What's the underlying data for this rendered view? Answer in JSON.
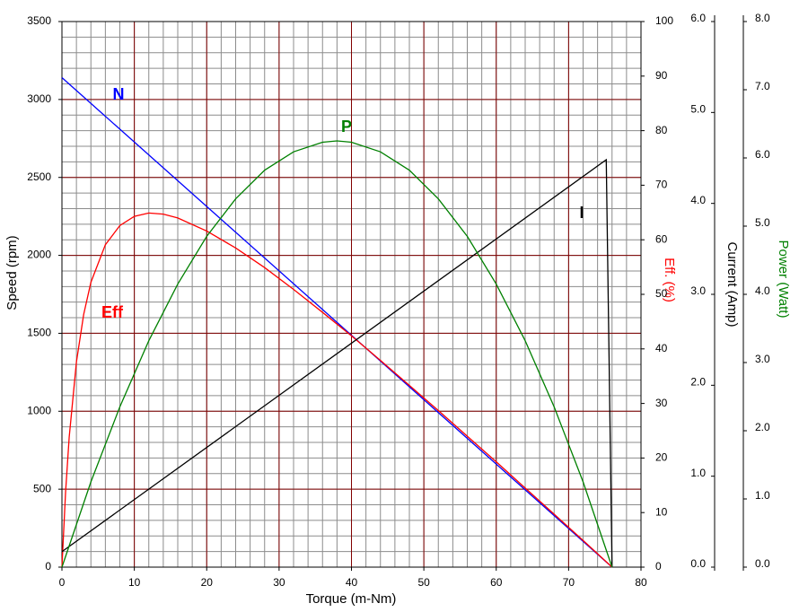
{
  "chart_data": {
    "type": "line",
    "xlabel": "Torque (m-Nm)",
    "ylabel": "Speed (rpm)",
    "y2label": "Eff. (%)",
    "y3label": "Current (Amp)",
    "y4label": "Power (Watt)",
    "xlim": [
      0,
      80
    ],
    "xticks": [
      0,
      10,
      20,
      30,
      40,
      50,
      60,
      70,
      80
    ],
    "ylim": [
      0,
      3500
    ],
    "yticks": [
      0,
      500,
      1000,
      1500,
      2000,
      2500,
      3000,
      3500
    ],
    "y2lim": [
      0,
      100
    ],
    "y2ticks": [
      0,
      10,
      20,
      30,
      40,
      50,
      60,
      70,
      80,
      90,
      100
    ],
    "y3lim": [
      0,
      6
    ],
    "y3ticks": [
      {
        "value": 0,
        "label": "0.0"
      },
      {
        "value": 1,
        "label": "1.0"
      },
      {
        "value": 2,
        "label": "2.0"
      },
      {
        "value": 3,
        "label": "3.0"
      },
      {
        "value": 4,
        "label": "4.0"
      },
      {
        "value": 5,
        "label": "5.0"
      },
      {
        "value": 6,
        "label": "6.0"
      }
    ],
    "y4lim": [
      0,
      8
    ],
    "y4ticks": [
      {
        "value": 0,
        "label": "0.0"
      },
      {
        "value": 1,
        "label": "1.0"
      },
      {
        "value": 2,
        "label": "2.0"
      },
      {
        "value": 3,
        "label": "3.0"
      },
      {
        "value": 4,
        "label": "4.0"
      },
      {
        "value": 5,
        "label": "5.0"
      },
      {
        "value": 6,
        "label": "6.0"
      },
      {
        "value": 7,
        "label": "7.0"
      },
      {
        "value": 8,
        "label": "8.0"
      }
    ],
    "x_minor_ticks": [
      0,
      2,
      4,
      6,
      8,
      10,
      12,
      14,
      16,
      18,
      20,
      22,
      24,
      26,
      28,
      30,
      32,
      34,
      36,
      38,
      40,
      42,
      44,
      46,
      48,
      50,
      52,
      54,
      56,
      58,
      60,
      62,
      64,
      66,
      68,
      70,
      72,
      74,
      76,
      78,
      80
    ],
    "y_minor_ticks": [
      0,
      100,
      200,
      300,
      400,
      500,
      600,
      700,
      800,
      900,
      1000,
      1100,
      1200,
      1300,
      1400,
      1500,
      1600,
      1700,
      1800,
      1900,
      2000,
      2100,
      2200,
      2300,
      2400,
      2500,
      2600,
      2700,
      2800,
      2900,
      3000,
      3100,
      3200,
      3300,
      3400,
      3500
    ],
    "grid": true,
    "series": [
      {
        "name": "N",
        "color": "#0000ff",
        "axis": "y",
        "x": [
          0,
          76
        ],
        "values": [
          3140,
          0
        ]
      },
      {
        "name": "Eff",
        "color": "#ff0000",
        "axis": "y2",
        "x": [
          0,
          0.5,
          1,
          2,
          3,
          4,
          6,
          8,
          10,
          12,
          14,
          16,
          20,
          24,
          28,
          32,
          36,
          40,
          44,
          48,
          52,
          56,
          60,
          64,
          68,
          72,
          76
        ],
        "values": [
          0,
          13.7,
          23.8,
          37.6,
          46.3,
          52.2,
          59.1,
          62.6,
          64.3,
          64.9,
          64.7,
          64.0,
          61.6,
          58.5,
          54.9,
          50.9,
          46.7,
          42.4,
          37.9,
          33.3,
          28.7,
          24.0,
          19.3,
          14.5,
          9.7,
          4.9,
          0
        ]
      },
      {
        "name": "I",
        "color": "#000000",
        "axis": "y3",
        "x": [
          0,
          75.2,
          76
        ],
        "values": [
          0.17,
          4.48,
          0
        ]
      },
      {
        "name": "P",
        "color": "#008000",
        "axis": "y4",
        "x": [
          0,
          4,
          8,
          12,
          16,
          20,
          24,
          28,
          32,
          36,
          38,
          40,
          44,
          48,
          52,
          56,
          60,
          64,
          68,
          72,
          76
        ],
        "values": [
          0,
          1.25,
          2.35,
          3.32,
          4.15,
          4.85,
          5.4,
          5.82,
          6.09,
          6.23,
          6.25,
          6.23,
          6.09,
          5.82,
          5.4,
          4.85,
          4.15,
          3.32,
          2.35,
          1.25,
          0
        ]
      }
    ]
  }
}
